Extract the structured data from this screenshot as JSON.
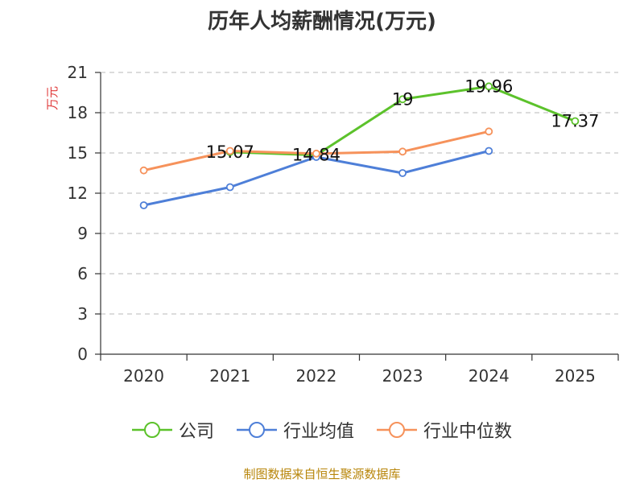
{
  "title": "历年人均薪酬情况(万元)",
  "source": "制图数据来自恒生聚源数据库",
  "chart_data": {
    "type": "line",
    "title": "历年人均薪酬情况(万元)",
    "ylabel": "万元",
    "xlabel": "",
    "categories": [
      "2020",
      "2021",
      "2022",
      "2023",
      "2024",
      "2025"
    ],
    "ylim": [
      0,
      21
    ],
    "yticks": [
      0,
      3,
      6,
      9,
      12,
      15,
      18,
      21
    ],
    "grid": true,
    "legend_position": "bottom",
    "series": [
      {
        "name": "公司",
        "color": "#5cc22b",
        "values": [
          null,
          15.07,
          14.84,
          19,
          19.96,
          17.37
        ],
        "labels": true
      },
      {
        "name": "行业均值",
        "color": "#4e7fd8",
        "values": [
          11.1,
          12.45,
          14.7,
          13.5,
          15.15,
          null
        ],
        "labels": false
      },
      {
        "name": "行业中位数",
        "color": "#f6925b",
        "values": [
          13.7,
          15.15,
          14.95,
          15.1,
          16.6,
          null
        ],
        "labels": false
      }
    ]
  }
}
